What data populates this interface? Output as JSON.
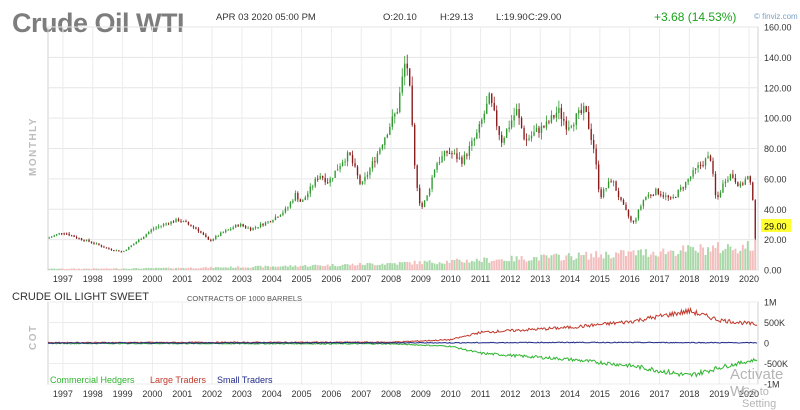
{
  "header": {
    "title": "Crude Oil WTI",
    "date": "APR 03 2020 05:00 PM",
    "open": "O:20.10",
    "high": "H:29.13",
    "low": "L:19.90",
    "close": "C:29.00",
    "change": "+3.68 (14.53%)",
    "brand": "© finviz.com",
    "timeframe": "MONTHLY"
  },
  "cot": {
    "label": "COT",
    "title": "CRUDE OIL LIGHT SWEET",
    "subtitle": "CONTRACTS OF 1000 BARRELS",
    "legend": [
      {
        "name": "Commercial Hedgers",
        "color": "#2fb52f"
      },
      {
        "name": "Large Traders",
        "color": "#c0392b"
      },
      {
        "name": "Small Traders",
        "color": "#1f2a8a"
      }
    ]
  },
  "watermark": {
    "line1": "Activate W",
    "line2": "Go to Setting"
  },
  "colors": {
    "up": "#2e9a2e",
    "down": "#8b1a1a",
    "vol_up": "#9fd49f",
    "vol_down": "#f3b7b7",
    "last": "#ffff33"
  },
  "chart_data": [
    {
      "type": "candlestick",
      "title": "Crude Oil WTI",
      "timeframe": "monthly",
      "x_range": [
        1996.5,
        2020.3
      ],
      "ylim": [
        0,
        160
      ],
      "y_ticks": [
        "160.00",
        "140.00",
        "120.00",
        "100.00",
        "80.00",
        "60.00",
        "40.00",
        "20.00",
        "0.00"
      ],
      "last_price": "29.00",
      "x_ticks": [
        "1997",
        "1998",
        "1999",
        "2000",
        "2001",
        "2002",
        "2003",
        "2004",
        "2005",
        "2006",
        "2007",
        "2008",
        "2009",
        "2010",
        "2011",
        "2012",
        "2013",
        "2014",
        "2015",
        "2016",
        "2017",
        "2018",
        "2019",
        "2020"
      ],
      "grid": true,
      "price_path": [
        [
          1996.5,
          21
        ],
        [
          1997.0,
          25
        ],
        [
          1997.5,
          21
        ],
        [
          1998.0,
          18
        ],
        [
          1998.5,
          14
        ],
        [
          1999.0,
          12
        ],
        [
          1999.5,
          19
        ],
        [
          2000.0,
          27
        ],
        [
          2000.5,
          31
        ],
        [
          2000.9,
          33
        ],
        [
          2001.5,
          27
        ],
        [
          2001.9,
          19
        ],
        [
          2002.3,
          24
        ],
        [
          2002.9,
          30
        ],
        [
          2003.3,
          27
        ],
        [
          2003.9,
          32
        ],
        [
          2004.5,
          40
        ],
        [
          2004.8,
          50
        ],
        [
          2005.0,
          44
        ],
        [
          2005.6,
          63
        ],
        [
          2005.9,
          58
        ],
        [
          2006.4,
          73
        ],
        [
          2006.6,
          76
        ],
        [
          2007.0,
          55
        ],
        [
          2007.5,
          75
        ],
        [
          2007.9,
          93
        ],
        [
          2008.2,
          105
        ],
        [
          2008.5,
          140
        ],
        [
          2008.6,
          125
        ],
        [
          2008.8,
          65
        ],
        [
          2009.0,
          40
        ],
        [
          2009.2,
          48
        ],
        [
          2009.5,
          70
        ],
        [
          2009.9,
          78
        ],
        [
          2010.4,
          72
        ],
        [
          2010.9,
          90
        ],
        [
          2011.3,
          113
        ],
        [
          2011.7,
          85
        ],
        [
          2012.2,
          105
        ],
        [
          2012.5,
          85
        ],
        [
          2012.9,
          92
        ],
        [
          2013.2,
          95
        ],
        [
          2013.6,
          105
        ],
        [
          2013.9,
          95
        ],
        [
          2014.3,
          102
        ],
        [
          2014.5,
          105
        ],
        [
          2014.8,
          80
        ],
        [
          2015.0,
          48
        ],
        [
          2015.4,
          60
        ],
        [
          2015.7,
          45
        ],
        [
          2016.1,
          30
        ],
        [
          2016.5,
          48
        ],
        [
          2016.9,
          52
        ],
        [
          2017.4,
          46
        ],
        [
          2017.9,
          58
        ],
        [
          2018.3,
          68
        ],
        [
          2018.7,
          75
        ],
        [
          2018.9,
          45
        ],
        [
          2019.2,
          60
        ],
        [
          2019.4,
          63
        ],
        [
          2019.7,
          55
        ],
        [
          2019.95,
          61
        ],
        [
          2020.0,
          60
        ],
        [
          2020.15,
          45
        ],
        [
          2020.2,
          20
        ],
        [
          2020.27,
          29
        ]
      ],
      "volume_scale": "relative"
    },
    {
      "type": "line",
      "title": "CRUDE OIL LIGHT SWEET",
      "subtitle": "CONTRACTS OF 1000 BARRELS",
      "y_ticks": [
        "1M",
        "500K",
        "0",
        "-500K",
        "-1M"
      ],
      "ylim": [
        -1000000,
        1000000
      ],
      "series": [
        {
          "name": "Commercial Hedgers",
          "points": [
            [
              1996.5,
              -10000
            ],
            [
              2008.0,
              -20000
            ],
            [
              2009.0,
              -50000
            ],
            [
              2010.0,
              -80000
            ],
            [
              2011.0,
              -250000
            ],
            [
              2013.0,
              -350000
            ],
            [
              2014.0,
              -400000
            ],
            [
              2016.0,
              -550000
            ],
            [
              2018.0,
              -800000
            ],
            [
              2019.0,
              -600000
            ],
            [
              2020.27,
              -400000
            ]
          ]
        },
        {
          "name": "Large Traders",
          "points": [
            [
              1996.5,
              10000
            ],
            [
              2008.0,
              20000
            ],
            [
              2009.0,
              50000
            ],
            [
              2010.0,
              80000
            ],
            [
              2011.0,
              260000
            ],
            [
              2013.0,
              340000
            ],
            [
              2014.0,
              380000
            ],
            [
              2016.0,
              520000
            ],
            [
              2018.0,
              780000
            ],
            [
              2019.0,
              560000
            ],
            [
              2020.27,
              450000
            ]
          ]
        },
        {
          "name": "Small Traders",
          "points": [
            [
              1996.5,
              0
            ],
            [
              2010.0,
              5000
            ],
            [
              2014.0,
              15000
            ],
            [
              2018.0,
              10000
            ],
            [
              2020.27,
              5000
            ]
          ]
        }
      ]
    }
  ]
}
